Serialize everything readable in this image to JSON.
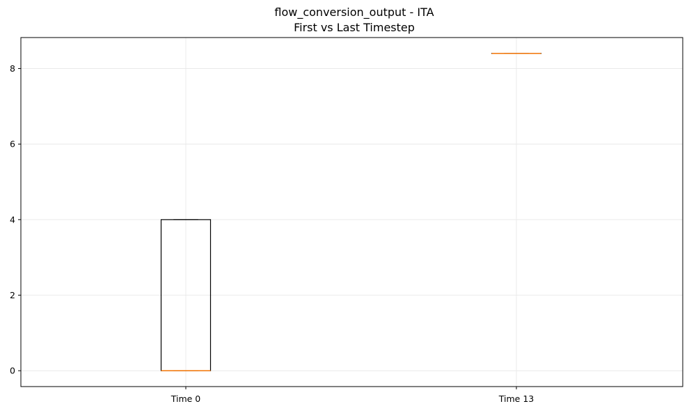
{
  "chart_data": {
    "type": "box",
    "title": "flow_conversion_output - ITA",
    "subtitle": "First vs Last Timestep",
    "xlabel": "",
    "ylabel": "",
    "categories": [
      "Time 0",
      "Time 13"
    ],
    "boxes": [
      {
        "label": "Time 0",
        "whisker_low": 0,
        "q1": 0,
        "median": 0,
        "q3": 4,
        "whisker_high": 4
      },
      {
        "label": "Time 13",
        "whisker_low": 8.4,
        "q1": 8.4,
        "median": 8.4,
        "q3": 8.4,
        "whisker_high": 8.4
      }
    ],
    "ylim": [
      -0.42,
      8.82
    ],
    "yticks": [
      0,
      2,
      4,
      6,
      8
    ],
    "grid": true,
    "colors": {
      "box_edge": "#000000",
      "median": "#ff7f0e",
      "grid": "#e6e6e6"
    }
  }
}
